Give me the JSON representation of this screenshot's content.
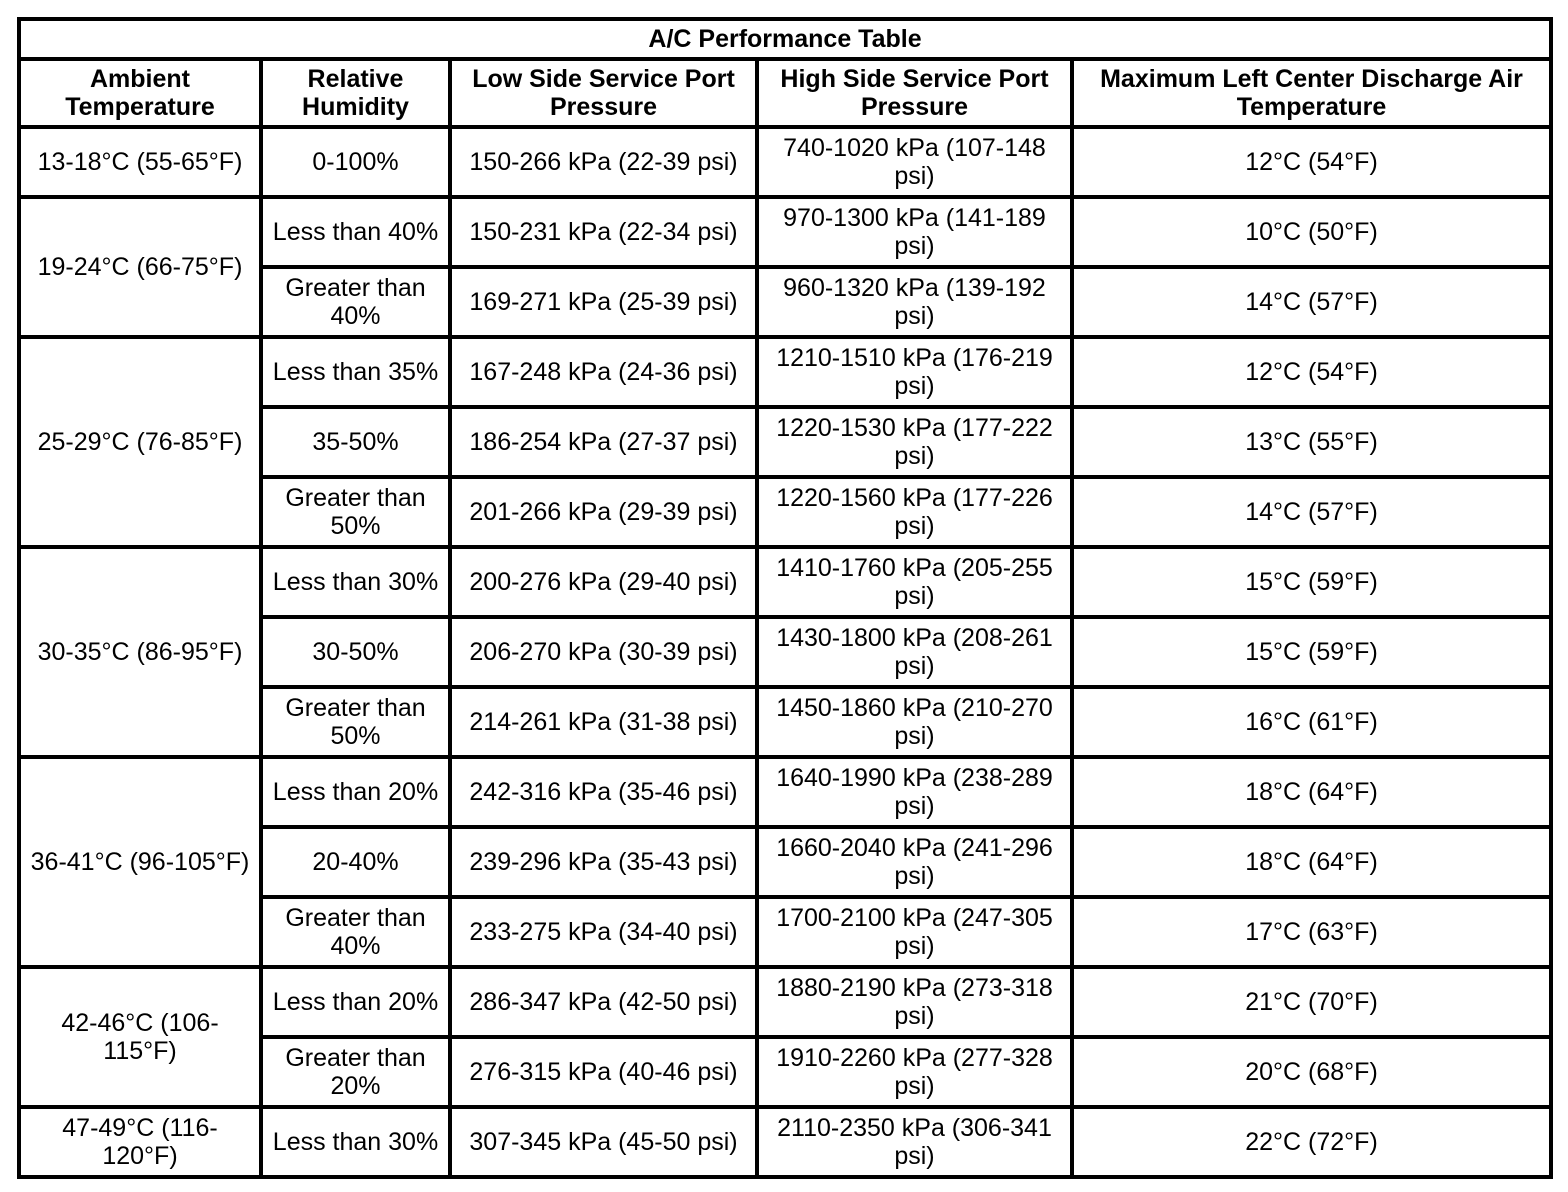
{
  "table": {
    "title": "A/C Performance Table",
    "columns": [
      "Ambient Temperature",
      "Relative Humidity",
      "Low Side Service Port Pressure",
      "High Side Service Port Pressure",
      "Maximum Left Center Discharge Air Temperature"
    ],
    "groups": [
      {
        "ambient_temperature": "13-18°C (55-65°F)",
        "rows": [
          {
            "relative_humidity": "0-100%",
            "low_side_pressure": "150-266 kPa (22-39 psi)",
            "high_side_pressure": "740-1020 kPa (107-148 psi)",
            "max_discharge_temperature": "12°C (54°F)"
          }
        ]
      },
      {
        "ambient_temperature": "19-24°C (66-75°F)",
        "rows": [
          {
            "relative_humidity": "Less than 40%",
            "low_side_pressure": "150-231 kPa (22-34 psi)",
            "high_side_pressure": "970-1300 kPa (141-189 psi)",
            "max_discharge_temperature": "10°C (50°F)"
          },
          {
            "relative_humidity": "Greater than 40%",
            "low_side_pressure": "169-271 kPa (25-39 psi)",
            "high_side_pressure": "960-1320 kPa (139-192 psi)",
            "max_discharge_temperature": "14°C (57°F)"
          }
        ]
      },
      {
        "ambient_temperature": "25-29°C (76-85°F)",
        "rows": [
          {
            "relative_humidity": "Less than 35%",
            "low_side_pressure": "167-248 kPa (24-36 psi)",
            "high_side_pressure": "1210-1510 kPa (176-219 psi)",
            "max_discharge_temperature": "12°C (54°F)"
          },
          {
            "relative_humidity": "35-50%",
            "low_side_pressure": "186-254 kPa (27-37 psi)",
            "high_side_pressure": "1220-1530 kPa (177-222 psi)",
            "max_discharge_temperature": "13°C (55°F)"
          },
          {
            "relative_humidity": "Greater than 50%",
            "low_side_pressure": "201-266 kPa (29-39 psi)",
            "high_side_pressure": "1220-1560 kPa (177-226 psi)",
            "max_discharge_temperature": "14°C (57°F)"
          }
        ]
      },
      {
        "ambient_temperature": "30-35°C (86-95°F)",
        "rows": [
          {
            "relative_humidity": "Less than 30%",
            "low_side_pressure": "200-276 kPa (29-40 psi)",
            "high_side_pressure": "1410-1760 kPa (205-255 psi)",
            "max_discharge_temperature": "15°C (59°F)"
          },
          {
            "relative_humidity": "30-50%",
            "low_side_pressure": "206-270 kPa (30-39 psi)",
            "high_side_pressure": "1430-1800 kPa (208-261 psi)",
            "max_discharge_temperature": "15°C (59°F)"
          },
          {
            "relative_humidity": "Greater than 50%",
            "low_side_pressure": "214-261 kPa (31-38 psi)",
            "high_side_pressure": "1450-1860 kPa (210-270 psi)",
            "max_discharge_temperature": "16°C (61°F)"
          }
        ]
      },
      {
        "ambient_temperature": "36-41°C (96-105°F)",
        "rows": [
          {
            "relative_humidity": "Less than 20%",
            "low_side_pressure": "242-316 kPa (35-46 psi)",
            "high_side_pressure": "1640-1990 kPa (238-289 psi)",
            "max_discharge_temperature": "18°C (64°F)"
          },
          {
            "relative_humidity": "20-40%",
            "low_side_pressure": "239-296 kPa (35-43 psi)",
            "high_side_pressure": "1660-2040 kPa (241-296 psi)",
            "max_discharge_temperature": "18°C (64°F)"
          },
          {
            "relative_humidity": "Greater than 40%",
            "low_side_pressure": "233-275 kPa (34-40 psi)",
            "high_side_pressure": "1700-2100 kPa (247-305 psi)",
            "max_discharge_temperature": "17°C (63°F)"
          }
        ]
      },
      {
        "ambient_temperature": "42-46°C (106-115°F)",
        "rows": [
          {
            "relative_humidity": "Less than 20%",
            "low_side_pressure": "286-347 kPa (42-50 psi)",
            "high_side_pressure": "1880-2190 kPa (273-318 psi)",
            "max_discharge_temperature": "21°C (70°F)"
          },
          {
            "relative_humidity": "Greater than 20%",
            "low_side_pressure": "276-315 kPa (40-46 psi)",
            "high_side_pressure": "1910-2260 kPa (277-328 psi)",
            "max_discharge_temperature": "20°C (68°F)"
          }
        ]
      },
      {
        "ambient_temperature": "47-49°C (116-120°F)",
        "rows": [
          {
            "relative_humidity": "Less than 30%",
            "low_side_pressure": "307-345 kPa (45-50 psi)",
            "high_side_pressure": "2110-2350 kPa (306-341 psi)",
            "max_discharge_temperature": "22°C (72°F)"
          }
        ]
      }
    ]
  }
}
